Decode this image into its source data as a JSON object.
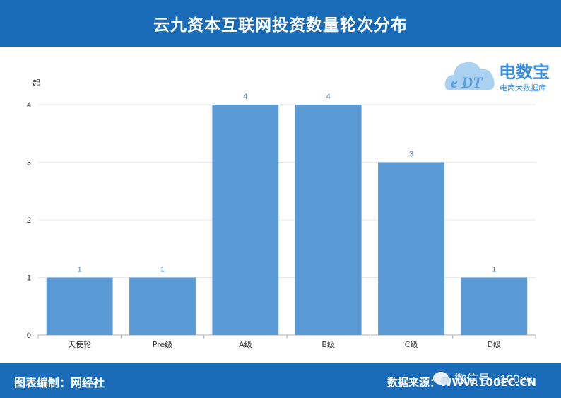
{
  "header": {
    "title": "云九资本互联网投资数量轮次分布"
  },
  "footer": {
    "left": "图表编制：网经社",
    "right": "数据来源：WWW.100EC.CN",
    "wechat": "微信号: i100ec"
  },
  "logo": {
    "mark": "e DT",
    "name": "电数宝",
    "tagline": "电商大数据库"
  },
  "chart_data": {
    "type": "bar",
    "title": "云九资本互联网投资数量轮次分布",
    "ylabel": "起",
    "xlabel": "",
    "categories": [
      "天使轮",
      "Pre级",
      "A级",
      "B级",
      "C级",
      "D级"
    ],
    "values": [
      1,
      1,
      4,
      4,
      3,
      1
    ],
    "ylim": [
      0,
      4
    ],
    "yticks": [
      0,
      1,
      2,
      3,
      4
    ],
    "grid": true,
    "bar_color": "#5b9bd5",
    "label_color": "#4a86c5"
  }
}
